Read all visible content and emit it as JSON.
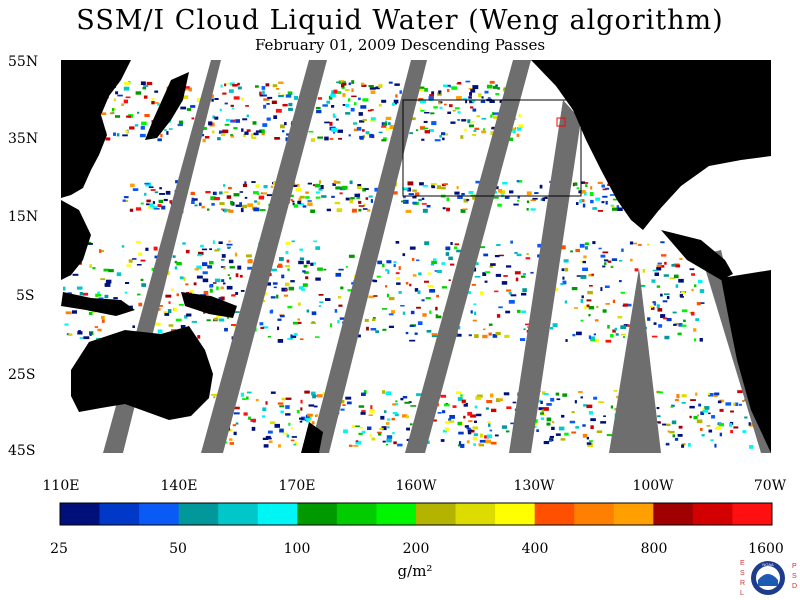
{
  "title": "SSM/I Cloud Liquid Water (Weng algorithm)",
  "subtitle": "February 01, 2009  Descending Passes",
  "lat_labels": [
    "55N",
    "35N",
    "15N",
    "5S",
    "25S",
    "45S"
  ],
  "lon_labels": [
    "110E",
    "140E",
    "170E",
    "160W",
    "130W",
    "100W",
    "70W"
  ],
  "colorbar": {
    "units": "g/m²",
    "tick_labels": [
      "25",
      "50",
      "100",
      "200",
      "400",
      "800",
      "1600"
    ],
    "colors": [
      "#00107a",
      "#0038c8",
      "#0a5af5",
      "#00989a",
      "#00c8c8",
      "#00f5f5",
      "#009a00",
      "#00cc00",
      "#00f500",
      "#b4b400",
      "#dcdc00",
      "#ffff00",
      "#ff5000",
      "#ff8000",
      "#ffa000",
      "#a00000",
      "#d20000",
      "#ff1010"
    ]
  },
  "logo": {
    "left_letters": "ESRL",
    "right_letters": "PSD",
    "center_text": "NOAA"
  },
  "map_colors": {
    "land": "#000000",
    "missing_swath": "#6e6e6e",
    "clear": "#ffffff",
    "outline_box": "#000000",
    "marker": "#ff0000"
  }
}
